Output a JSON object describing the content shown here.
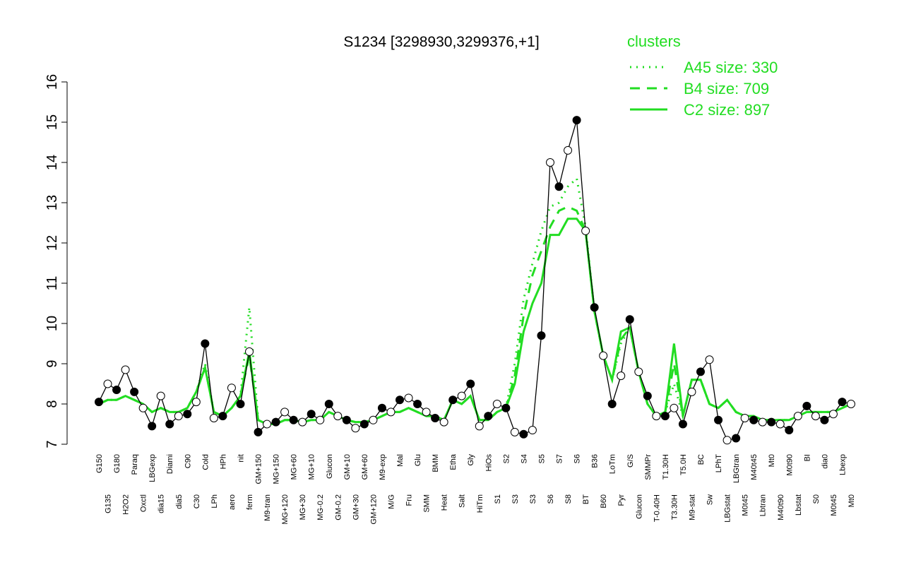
{
  "chart_data": {
    "type": "line",
    "title": "S1234 [3298930,3299376,+1]",
    "ylim": [
      7,
      16
    ],
    "yticks": [
      7,
      8,
      9,
      10,
      11,
      12,
      13,
      14,
      15,
      16
    ],
    "color": "#000000",
    "legend_title": "clusters",
    "legend_color": "#22dd22",
    "legend_position": "top-right",
    "categories": [
      "G150",
      "G135",
      "G180",
      "H2O2",
      "Paraq",
      "Oxctl",
      "LBGexp",
      "dia15",
      "Diami",
      "dia5",
      "C90",
      "C30",
      "Cold",
      "LPh",
      "HPh",
      "aero",
      "nit",
      "ferm",
      "GM+150",
      "M9-tran",
      "MG+150",
      "MG+120",
      "MG+60",
      "MG+30",
      "MG+10",
      "MG-0.2",
      "Glucon",
      "GM-0.2",
      "GM+10",
      "GM+30",
      "GM+60",
      "GM+120",
      "M9-exp",
      "M/G",
      "Mal",
      "Fru",
      "Glu",
      "SMM",
      "BMM",
      "Heat",
      "Etha",
      "Salt",
      "Gly",
      "HiTm",
      "HiOs",
      "S1",
      "S2",
      "S3",
      "S4",
      "S3",
      "S5",
      "S6",
      "S7",
      "S8",
      "S6",
      "BT",
      "B36",
      "B60",
      "LoTm",
      "Pyr",
      "G/S",
      "Glucon",
      "SMMPr",
      "T-0.40H",
      "T1.30H",
      "T3.30H",
      "T5.0H",
      "M9-stat",
      "BC",
      "Sw",
      "LPhT",
      "LBGstat",
      "LBGtran",
      "M0t45",
      "M40t45",
      "Lbtran",
      "Mt0",
      "M40t90",
      "M0t90",
      "Lbstat",
      "BI",
      "S0",
      "dia0",
      "M0t45",
      "Lbexp",
      "Mt0"
    ],
    "values": [
      8.05,
      8.5,
      8.35,
      8.85,
      8.3,
      7.9,
      7.45,
      8.2,
      7.5,
      7.7,
      7.75,
      8.05,
      9.5,
      7.65,
      7.7,
      8.4,
      8.0,
      9.3,
      7.3,
      7.5,
      7.55,
      7.8,
      7.6,
      7.55,
      7.75,
      7.6,
      8.0,
      7.7,
      7.6,
      7.4,
      7.5,
      7.6,
      7.9,
      7.8,
      8.1,
      8.15,
      8.0,
      7.8,
      7.65,
      7.55,
      8.1,
      8.2,
      8.5,
      7.45,
      7.7,
      8.0,
      7.9,
      7.3,
      7.25,
      7.35,
      9.7,
      14.0,
      13.4,
      14.3,
      15.05,
      12.3,
      10.4,
      9.2,
      8.0,
      8.7,
      10.1,
      8.8,
      8.2,
      7.7,
      7.7,
      7.9,
      7.5,
      8.3,
      8.8,
      9.1,
      7.6,
      7.1,
      7.15,
      7.65,
      7.6,
      7.55,
      7.55,
      7.5,
      7.35,
      7.7,
      7.95,
      7.7,
      7.6,
      7.75,
      8.05,
      8.0
    ],
    "series": [
      {
        "name": "A45 size: 330",
        "color": "#22dd22",
        "dash": "dotted",
        "values": [
          8.0,
          8.1,
          8.1,
          8.2,
          8.1,
          8.0,
          7.8,
          7.9,
          7.8,
          7.8,
          7.9,
          8.3,
          9.0,
          7.8,
          7.7,
          7.9,
          8.2,
          10.4,
          7.6,
          7.5,
          7.5,
          7.6,
          7.6,
          7.55,
          7.6,
          7.6,
          7.8,
          7.7,
          7.6,
          7.55,
          7.55,
          7.6,
          7.7,
          7.8,
          7.8,
          7.9,
          7.8,
          7.7,
          7.7,
          7.6,
          8.1,
          8.0,
          8.2,
          7.6,
          7.6,
          7.8,
          7.9,
          9.0,
          10.6,
          11.5,
          12.3,
          12.9,
          13.0,
          13.4,
          13.6,
          12.4,
          10.3,
          9.2,
          8.6,
          9.5,
          9.9,
          8.8,
          8.0,
          7.7,
          7.8,
          8.5,
          7.7,
          8.6,
          8.6,
          8.0,
          7.9,
          8.1,
          7.8,
          7.7,
          7.7,
          7.6,
          7.6,
          7.6,
          7.6,
          7.7,
          7.8,
          7.8,
          7.8,
          7.8,
          7.9,
          8.0
        ]
      },
      {
        "name": "B4 size: 709",
        "color": "#22dd22",
        "dash": "dashed",
        "values": [
          8.0,
          8.1,
          8.1,
          8.2,
          8.1,
          8.0,
          7.8,
          7.9,
          7.8,
          7.8,
          7.9,
          8.3,
          8.9,
          7.8,
          7.7,
          7.9,
          8.2,
          9.2,
          7.6,
          7.5,
          7.5,
          7.6,
          7.6,
          7.55,
          7.6,
          7.6,
          7.8,
          7.7,
          7.6,
          7.55,
          7.55,
          7.6,
          7.7,
          7.8,
          7.8,
          7.9,
          7.8,
          7.7,
          7.7,
          7.6,
          8.1,
          8.0,
          8.2,
          7.6,
          7.6,
          7.8,
          7.9,
          8.7,
          10.2,
          11.2,
          11.8,
          12.4,
          12.8,
          12.9,
          12.8,
          12.3,
          10.3,
          9.2,
          8.6,
          9.6,
          9.9,
          8.8,
          8.0,
          7.7,
          7.8,
          9.0,
          7.7,
          8.6,
          8.6,
          8.0,
          7.9,
          8.1,
          7.8,
          7.7,
          7.7,
          7.6,
          7.6,
          7.6,
          7.6,
          7.7,
          7.8,
          7.8,
          7.8,
          7.8,
          7.9,
          8.0
        ]
      },
      {
        "name": "C2 size: 897",
        "color": "#22dd22",
        "dash": "solid",
        "values": [
          8.0,
          8.1,
          8.1,
          8.2,
          8.1,
          8.0,
          7.8,
          7.9,
          7.8,
          7.8,
          7.9,
          8.3,
          8.9,
          7.8,
          7.7,
          7.9,
          8.2,
          9.3,
          7.6,
          7.5,
          7.5,
          7.6,
          7.6,
          7.55,
          7.6,
          7.6,
          7.8,
          7.7,
          7.6,
          7.55,
          7.55,
          7.6,
          7.7,
          7.8,
          7.8,
          7.9,
          7.8,
          7.7,
          7.7,
          7.6,
          8.1,
          8.0,
          8.2,
          7.6,
          7.6,
          7.8,
          7.9,
          8.5,
          9.8,
          10.5,
          11.0,
          12.2,
          12.2,
          12.6,
          12.6,
          12.3,
          10.3,
          9.2,
          8.6,
          9.8,
          9.9,
          8.8,
          8.0,
          7.7,
          7.8,
          9.5,
          7.7,
          8.6,
          8.6,
          8.0,
          7.9,
          8.1,
          7.8,
          7.7,
          7.7,
          7.6,
          7.6,
          7.6,
          7.6,
          7.7,
          7.8,
          7.8,
          7.8,
          7.8,
          7.9,
          8.0
        ]
      }
    ]
  }
}
